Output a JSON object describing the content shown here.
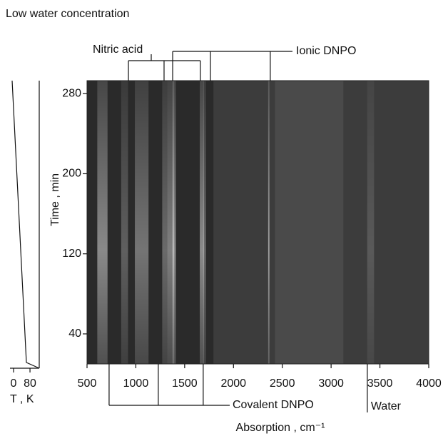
{
  "chart_data": {
    "type": "spectrogram",
    "title": "Low water concentration",
    "x_label": "Absorption , cm⁻¹",
    "y_label": "Time , min",
    "xlim": [
      500,
      4000
    ],
    "xticks": [
      500,
      1000,
      1500,
      2000,
      2500,
      3000,
      3500,
      4000
    ],
    "ylim": [
      10,
      293
    ],
    "yticks": [
      40,
      120,
      200,
      280
    ],
    "temperature_axis": {
      "label": "T , K",
      "ticks": [
        0,
        80
      ],
      "lim": [
        0,
        125
      ]
    },
    "annotations": [
      {
        "label": "Nitric acid",
        "x": [
          924,
          1289,
          1661
        ],
        "side": "top"
      },
      {
        "label": "Ionic DNPO",
        "x": [
          1377,
          1764,
          2377
        ],
        "side": "top"
      },
      {
        "label": "Covalent DNPO",
        "x": [
          726,
          1230,
          1690
        ],
        "side": "bottom"
      },
      {
        "label": "Water",
        "x": [
          3371
        ],
        "side": "bottom"
      }
    ]
  }
}
